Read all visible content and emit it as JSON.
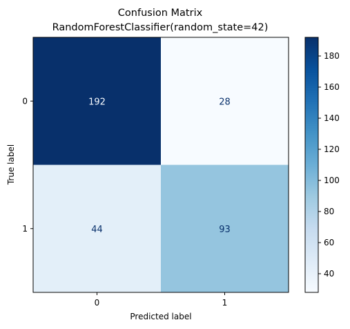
{
  "chart_data": {
    "type": "heatmap",
    "title": "Confusion Matrix\nRandomForestClassifier(random_state=42)",
    "title_lines": [
      "Confusion Matrix",
      "RandomForestClassifier(random_state=42)"
    ],
    "xlabel": "Predicted label",
    "ylabel": "True label",
    "x_categories": [
      "0",
      "1"
    ],
    "y_categories": [
      "0",
      "1"
    ],
    "values": [
      [
        192,
        28
      ],
      [
        44,
        93
      ]
    ],
    "colormap": "Blues",
    "vmin": 28,
    "vmax": 192,
    "colorbar_ticks": [
      "40",
      "60",
      "80",
      "100",
      "120",
      "140",
      "160",
      "180"
    ],
    "grid": false
  },
  "colors": {
    "low": "#f7fbff",
    "high": "#08306b",
    "text_on_dark": "#f7fbff",
    "text_on_light": "#08306b"
  }
}
